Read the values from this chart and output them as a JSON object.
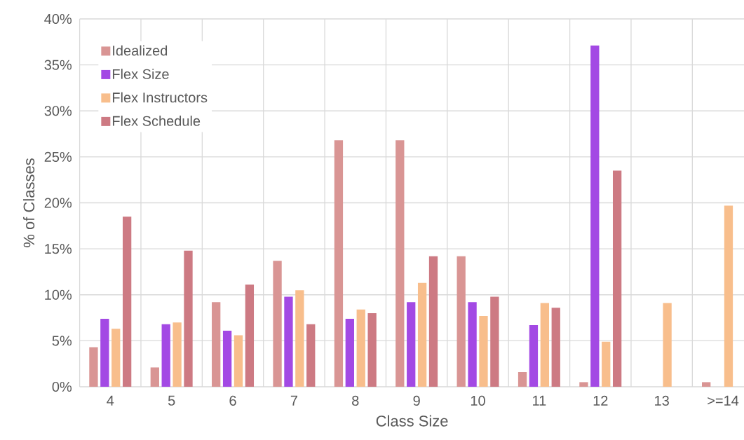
{
  "chart_data": {
    "type": "bar",
    "xlabel": "Class Size",
    "ylabel": "% of Classes",
    "categories": [
      "4",
      "5",
      "6",
      "7",
      "8",
      "9",
      "10",
      "11",
      "12",
      "13",
      ">=14"
    ],
    "series": [
      {
        "name": "Idealized",
        "color": "#d99594",
        "values": [
          4.3,
          2.1,
          9.2,
          13.7,
          26.8,
          26.8,
          14.2,
          1.6,
          0.5,
          0,
          0.5
        ]
      },
      {
        "name": "Flex Size",
        "color": "#a349e4",
        "values": [
          7.4,
          6.8,
          6.1,
          9.8,
          7.4,
          9.2,
          9.2,
          6.7,
          37.1,
          0,
          0
        ]
      },
      {
        "name": "Flex Instructors",
        "color": "#f8be8c",
        "values": [
          6.3,
          7.0,
          5.6,
          10.5,
          8.4,
          11.3,
          7.7,
          9.1,
          4.9,
          9.1,
          19.7
        ]
      },
      {
        "name": "Flex Schedule",
        "color": "#cd7a83",
        "values": [
          18.5,
          14.8,
          11.1,
          6.8,
          8.0,
          14.2,
          9.8,
          8.6,
          23.5,
          0,
          0
        ]
      }
    ],
    "ylim": [
      0,
      40
    ],
    "yticks": [
      {
        "value": 0,
        "label": "0%"
      },
      {
        "value": 5,
        "label": "5%"
      },
      {
        "value": 10,
        "label": "10%"
      },
      {
        "value": 15,
        "label": "15%"
      },
      {
        "value": 20,
        "label": "20%"
      },
      {
        "value": 25,
        "label": "25%"
      },
      {
        "value": 30,
        "label": "30%"
      },
      {
        "value": 35,
        "label": "35%"
      },
      {
        "value": 40,
        "label": "40%"
      }
    ],
    "grid": true,
    "legend": "top left"
  }
}
